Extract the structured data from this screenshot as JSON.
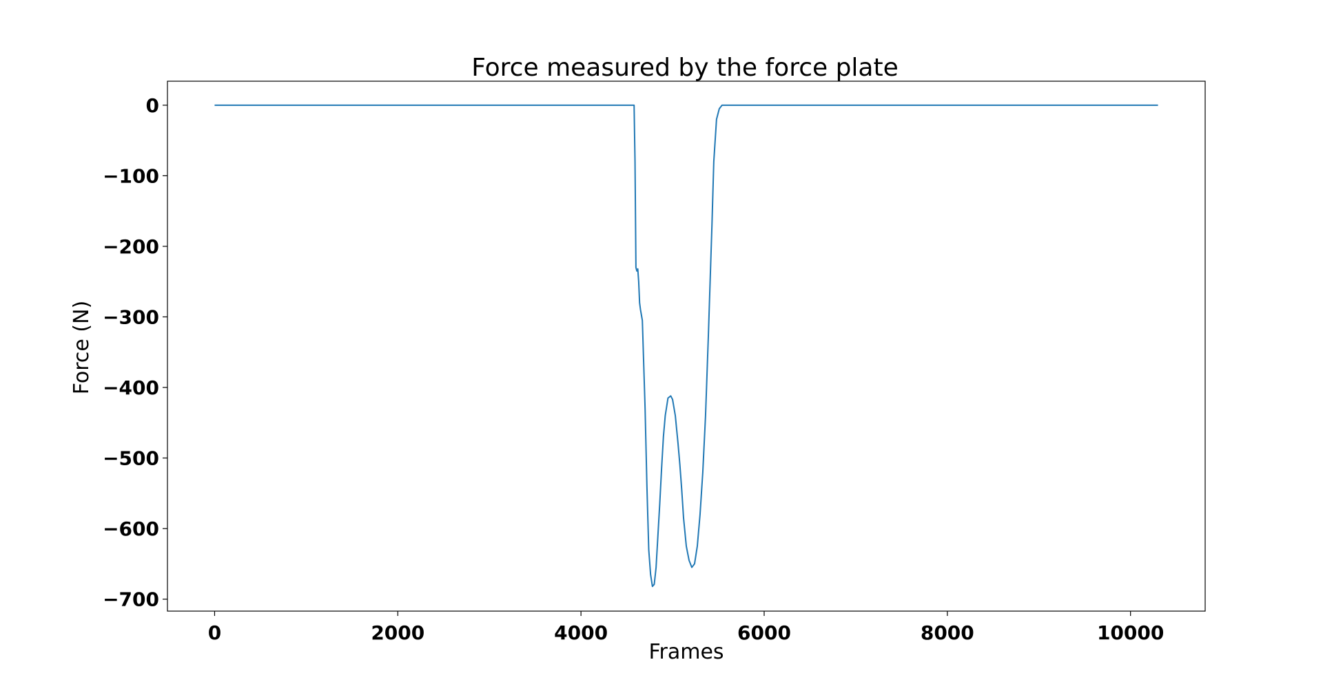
{
  "chart_data": {
    "type": "line",
    "title": "Force measured by the force plate",
    "xlabel": "Frames",
    "ylabel": "Force (N)",
    "xlim": [
      -515,
      10815
    ],
    "ylim": [
      -717,
      34
    ],
    "x_ticks": [
      0,
      2000,
      4000,
      6000,
      8000,
      10000
    ],
    "x_tick_labels": [
      "0",
      "2000",
      "4000",
      "6000",
      "8000",
      "10000"
    ],
    "y_ticks": [
      0,
      -100,
      -200,
      -300,
      -400,
      -500,
      -600,
      -700
    ],
    "y_tick_labels": [
      "0",
      "−100",
      "−200",
      "−300",
      "−400",
      "−500",
      "−600",
      "−700"
    ],
    "grid": false,
    "line_color": "#1f77b4",
    "series": [
      {
        "x": [
          0,
          1000,
          2000,
          3000,
          4000,
          4500,
          4580,
          4590,
          4600,
          4610,
          4620,
          4630,
          4640,
          4650,
          4670,
          4700,
          4720,
          4740,
          4760,
          4780,
          4800,
          4820,
          4840,
          4860,
          4880,
          4900,
          4920,
          4950,
          4980,
          5000,
          5030,
          5060,
          5080,
          5100,
          5120,
          5150,
          5180,
          5210,
          5240,
          5270,
          5300,
          5330,
          5360,
          5390,
          5410,
          5430,
          5450,
          5480,
          5510,
          5540,
          5570,
          5600,
          5620,
          5640,
          5660,
          5680,
          5700,
          6000,
          7000,
          8000,
          9000,
          10000,
          10300
        ],
        "y": [
          0,
          0,
          0,
          0,
          0,
          0,
          0,
          -80,
          -230,
          -235,
          -232,
          -250,
          -280,
          -290,
          -305,
          -430,
          -540,
          -630,
          -665,
          -682,
          -679,
          -655,
          -610,
          -565,
          -515,
          -470,
          -440,
          -415,
          -412,
          -417,
          -440,
          -480,
          -510,
          -545,
          -585,
          -625,
          -645,
          -655,
          -650,
          -625,
          -580,
          -520,
          -440,
          -330,
          -250,
          -170,
          -80,
          -20,
          -5,
          0,
          0,
          0,
          0,
          0,
          0,
          0,
          0,
          0,
          0,
          0,
          0,
          0,
          0
        ]
      }
    ]
  }
}
